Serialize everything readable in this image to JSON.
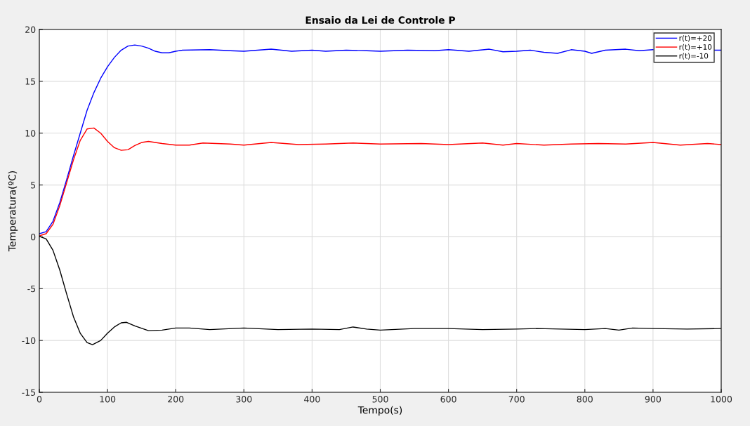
{
  "chart_data": {
    "type": "line",
    "title": "Ensaio da Lei de Controle P",
    "xlabel": "Tempo(s)",
    "ylabel": "Temperatura(ºC)",
    "xlim": [
      0,
      1000
    ],
    "ylim": [
      -15,
      20
    ],
    "xticks": [
      0,
      100,
      200,
      300,
      400,
      500,
      600,
      700,
      800,
      900,
      1000
    ],
    "yticks": [
      -15,
      -10,
      -5,
      0,
      5,
      10,
      15,
      20
    ],
    "grid": true,
    "legend": "top right",
    "marker": "none",
    "line_style": "solid",
    "series": [
      {
        "name": "r(t)=+20",
        "color": "#0000ff",
        "x": [
          0,
          10,
          20,
          30,
          40,
          50,
          60,
          70,
          80,
          90,
          100,
          110,
          120,
          130,
          140,
          150,
          160,
          170,
          180,
          190,
          200,
          210,
          250,
          280,
          300,
          340,
          370,
          400,
          420,
          450,
          480,
          500,
          540,
          580,
          600,
          630,
          660,
          680,
          700,
          720,
          740,
          760,
          780,
          800,
          810,
          830,
          860,
          880,
          900,
          930,
          960,
          990,
          1000
        ],
        "values": [
          0.3,
          0.5,
          1.5,
          3.3,
          5.5,
          7.8,
          10,
          12.2,
          13.9,
          15.3,
          16.4,
          17.3,
          18.0,
          18.4,
          18.5,
          18.4,
          18.2,
          17.9,
          17.75,
          17.75,
          17.9,
          18.0,
          18.05,
          17.95,
          17.9,
          18.1,
          17.9,
          18.0,
          17.9,
          18.0,
          17.95,
          17.9,
          18.0,
          17.95,
          18.05,
          17.9,
          18.1,
          17.85,
          17.9,
          18.0,
          17.8,
          17.7,
          18.05,
          17.9,
          17.7,
          18.0,
          18.1,
          17.95,
          18.05,
          null,
          null,
          18.0,
          18.0
        ]
      },
      {
        "name": "r(t)=+10",
        "color": "#ff0000",
        "x": [
          0,
          10,
          20,
          30,
          40,
          50,
          60,
          70,
          80,
          90,
          100,
          110,
          120,
          130,
          140,
          150,
          160,
          180,
          200,
          220,
          240,
          280,
          300,
          340,
          380,
          420,
          460,
          500,
          560,
          600,
          650,
          680,
          700,
          740,
          780,
          820,
          860,
          900,
          940,
          980,
          1000
        ],
        "values": [
          0.1,
          0.3,
          1.2,
          3,
          5.2,
          7.4,
          9.3,
          10.4,
          10.5,
          10.0,
          9.2,
          8.6,
          8.35,
          8.4,
          8.8,
          9.1,
          9.2,
          9.0,
          8.85,
          8.85,
          9.05,
          8.95,
          8.85,
          9.1,
          8.9,
          8.95,
          9.05,
          8.95,
          9.0,
          8.9,
          9.05,
          8.85,
          9.0,
          8.85,
          8.95,
          9.0,
          8.95,
          9.1,
          8.85,
          9.0,
          8.9
        ]
      },
      {
        "name": "r(t)=-10",
        "color": "#000000",
        "x": [
          0,
          10,
          20,
          30,
          40,
          50,
          60,
          70,
          78,
          90,
          100,
          110,
          120,
          128,
          140,
          160,
          180,
          200,
          220,
          250,
          300,
          350,
          400,
          440,
          460,
          480,
          500,
          550,
          600,
          650,
          700,
          730,
          800,
          830,
          850,
          870,
          900,
          950,
          1000
        ],
        "values": [
          0.05,
          -0.2,
          -1.3,
          -3.2,
          -5.5,
          -7.7,
          -9.3,
          -10.2,
          -10.4,
          -10.0,
          -9.3,
          -8.7,
          -8.3,
          -8.25,
          -8.6,
          -9.05,
          -9.0,
          -8.8,
          -8.8,
          -8.95,
          -8.8,
          -8.95,
          -8.9,
          -8.95,
          -8.7,
          -8.9,
          -9.0,
          -8.85,
          -8.85,
          -8.95,
          -8.9,
          -8.85,
          -8.95,
          -8.85,
          -9.0,
          -8.8,
          -8.85,
          -8.9,
          -8.85
        ]
      }
    ]
  }
}
